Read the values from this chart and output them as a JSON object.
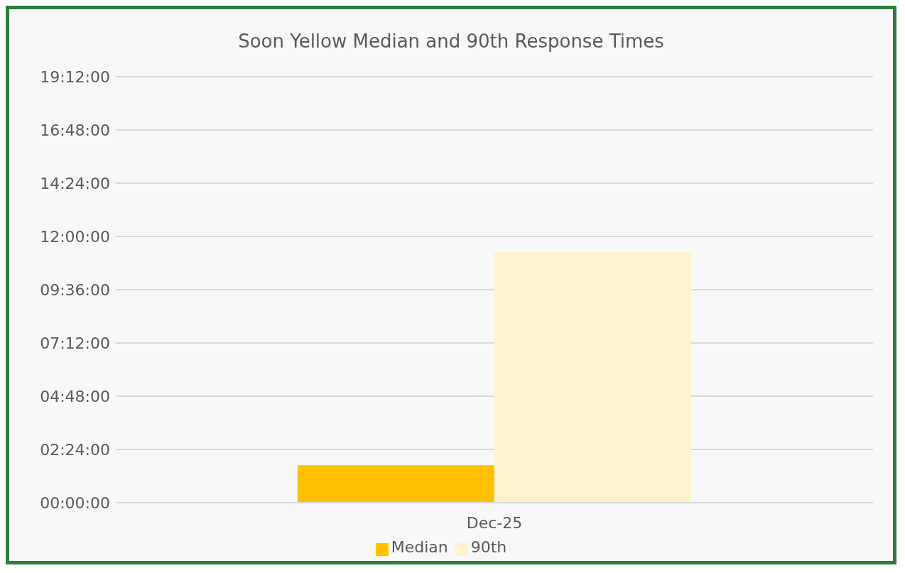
{
  "chart_data": {
    "type": "bar",
    "title": "Soon Yellow Median and 90th Response Times",
    "categories": [
      "Dec-25"
    ],
    "series": [
      {
        "name": "Median",
        "color": "#ffc000",
        "values": [
          1.69
        ]
      },
      {
        "name": "90th",
        "color": "#fff2cc",
        "values": [
          11.29
        ]
      }
    ],
    "ylim": [
      0,
      19.2
    ],
    "yticks": [
      {
        "value": 0,
        "label": "00:00:00"
      },
      {
        "value": 2.4,
        "label": "02:24:00"
      },
      {
        "value": 4.8,
        "label": "04:48:00"
      },
      {
        "value": 7.2,
        "label": "07:12:00"
      },
      {
        "value": 9.6,
        "label": "09:36:00"
      },
      {
        "value": 12,
        "label": "12:00:00"
      },
      {
        "value": 14.4,
        "label": "14:24:00"
      },
      {
        "value": 16.8,
        "label": "16:48:00"
      },
      {
        "value": 19.2,
        "label": "19:12:00"
      }
    ],
    "grid": "y",
    "legend": "bottom"
  }
}
